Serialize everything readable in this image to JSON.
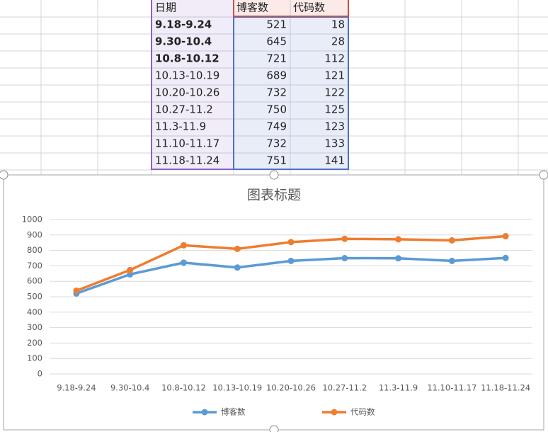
{
  "table": {
    "header": "日期"
  },
  "chart_data": {
    "type": "line",
    "stacked": true,
    "title": "图表标题",
    "categories": [
      "9.18-9.24",
      "9.30-10.4",
      "10.8-10.12",
      "10.13-10.19",
      "10.20-10.26",
      "10.27-11.2",
      "11.3-11.9",
      "11.10-11.17",
      "11.18-11.24"
    ],
    "series": [
      {
        "name": "博客数",
        "color": "#5b9bd5",
        "values": [
          521,
          645,
          721,
          689,
          732,
          750,
          749,
          732,
          751
        ]
      },
      {
        "name": "代码数",
        "color": "#ed7d31",
        "values": [
          18,
          28,
          112,
          121,
          122,
          125,
          123,
          133,
          141
        ]
      }
    ],
    "ylim": [
      0,
      1000
    ],
    "yticks": [
      0,
      100,
      200,
      300,
      400,
      500,
      600,
      700,
      800,
      900,
      1000
    ],
    "grid": true,
    "legend": "bottom"
  }
}
